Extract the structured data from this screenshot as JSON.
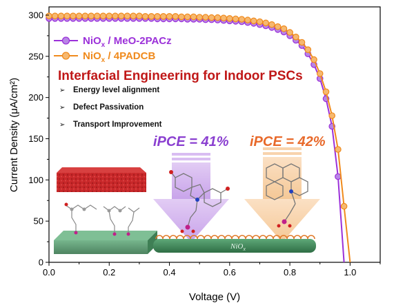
{
  "chart_data": {
    "type": "line",
    "xlabel": "Voltage (V)",
    "ylabel": "Current Density (μA/cm²)",
    "xlim": [
      0.0,
      1.1
    ],
    "ylim": [
      0,
      310
    ],
    "x_ticks": [
      "0.0",
      "0.2",
      "0.4",
      "0.6",
      "0.8",
      "1.0"
    ],
    "y_ticks": [
      "0",
      "50",
      "100",
      "150",
      "200",
      "250",
      "300"
    ],
    "grid": false,
    "legend_position": "top-left",
    "series": [
      {
        "name": "NiOx / MeO-2PACz",
        "name_main": "NiO",
        "name_sub": "x",
        "name_rest": " / MeO-2PACz",
        "color": "#9b30d9",
        "x": [
          0.0,
          0.02,
          0.04,
          0.06,
          0.08,
          0.1,
          0.12,
          0.14,
          0.16,
          0.18,
          0.2,
          0.22,
          0.24,
          0.26,
          0.28,
          0.3,
          0.32,
          0.34,
          0.36,
          0.38,
          0.4,
          0.42,
          0.44,
          0.46,
          0.48,
          0.5,
          0.52,
          0.54,
          0.56,
          0.58,
          0.6,
          0.62,
          0.64,
          0.66,
          0.68,
          0.7,
          0.72,
          0.74,
          0.76,
          0.78,
          0.8,
          0.82,
          0.84,
          0.86,
          0.88,
          0.9,
          0.92,
          0.94,
          0.96,
          0.98,
          1.0,
          1.02,
          1.04
        ],
        "y": [
          296,
          296,
          296,
          296,
          296,
          296,
          296,
          296,
          296,
          296,
          296,
          296,
          296,
          296,
          296,
          296,
          296,
          296,
          295.5,
          295.5,
          295.5,
          295.5,
          295.5,
          295,
          295,
          295,
          294.5,
          294.5,
          294,
          293.5,
          293,
          292.5,
          292,
          291,
          290,
          288.5,
          287,
          285,
          282.5,
          279.5,
          275,
          269.5,
          263,
          253,
          240,
          223,
          198.5,
          165,
          104,
          -5,
          -5,
          -5,
          -5
        ]
      },
      {
        "name": "NiOx / 4PADCB",
        "name_main": "NiO",
        "name_sub": "x",
        "name_rest": " / 4PADCB",
        "color": "#f08a1c",
        "x": [
          0.0,
          0.02,
          0.04,
          0.06,
          0.08,
          0.1,
          0.12,
          0.14,
          0.16,
          0.18,
          0.2,
          0.22,
          0.24,
          0.26,
          0.28,
          0.3,
          0.32,
          0.34,
          0.36,
          0.38,
          0.4,
          0.42,
          0.44,
          0.46,
          0.48,
          0.5,
          0.52,
          0.54,
          0.56,
          0.58,
          0.6,
          0.62,
          0.64,
          0.66,
          0.68,
          0.7,
          0.72,
          0.74,
          0.76,
          0.78,
          0.8,
          0.82,
          0.84,
          0.86,
          0.88,
          0.9,
          0.92,
          0.94,
          0.96,
          0.98,
          1.0,
          1.02,
          1.04,
          1.06
        ],
        "y": [
          299,
          299,
          299,
          299,
          299,
          299,
          299,
          299,
          299,
          299,
          299,
          299,
          299,
          299,
          299,
          299,
          298.5,
          298.5,
          298.5,
          298.5,
          298.5,
          298.5,
          298,
          298,
          298,
          297.5,
          297.5,
          297,
          297,
          296.5,
          296,
          295.5,
          295,
          294,
          293,
          292,
          290.5,
          288.5,
          286,
          283.5,
          279,
          273.5,
          267,
          258,
          246,
          229,
          207,
          178,
          137,
          68,
          -5,
          -5,
          -5,
          -5
        ]
      }
    ],
    "annotations": {
      "headline": "Interfacial Engineering for Indoor PSCs",
      "bullets": [
        "Energy level alignment",
        "Defect Passivation",
        "Transport Improvement"
      ],
      "ipce_left": "iPCE = 41%",
      "ipce_right": "iPCE = 42%",
      "substrate_label_main": "NiO",
      "substrate_label_sub": "x"
    }
  },
  "colors": {
    "purple": "#9b30d9",
    "orange": "#f08a1c",
    "headline_red": "#c01818",
    "perovskite_red": "#c8282a",
    "substrate_green": "#3f8a5a"
  }
}
